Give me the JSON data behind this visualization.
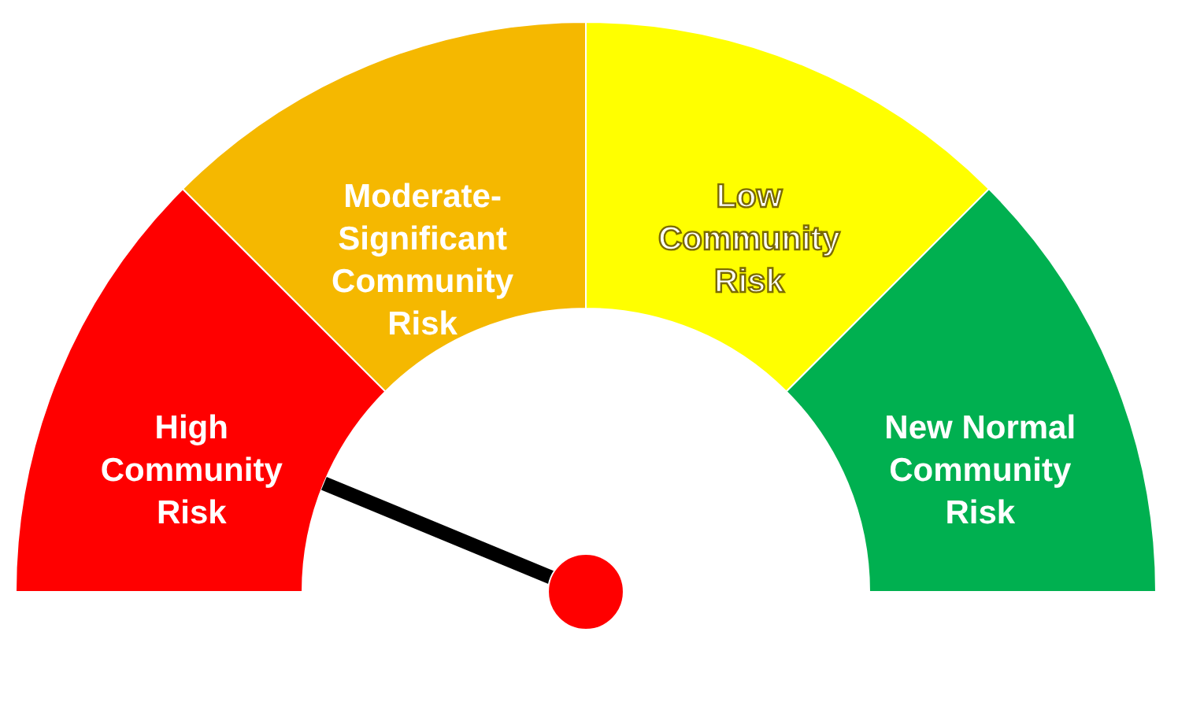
{
  "chart_data": {
    "type": "donut",
    "categories": [
      "High\nCommunity\nRisk",
      "Moderate-\nSignificant\nCommunity\nRisk",
      "Low\nCommunity\nRisk",
      "New Normal\nCommunity\nRisk"
    ],
    "values": [
      25,
      25,
      25,
      25
    ],
    "colors": [
      "#ff0000",
      "#f5b800",
      "#ffff00",
      "#00b050"
    ],
    "needle": "High\nCommunity\nRisk"
  }
}
